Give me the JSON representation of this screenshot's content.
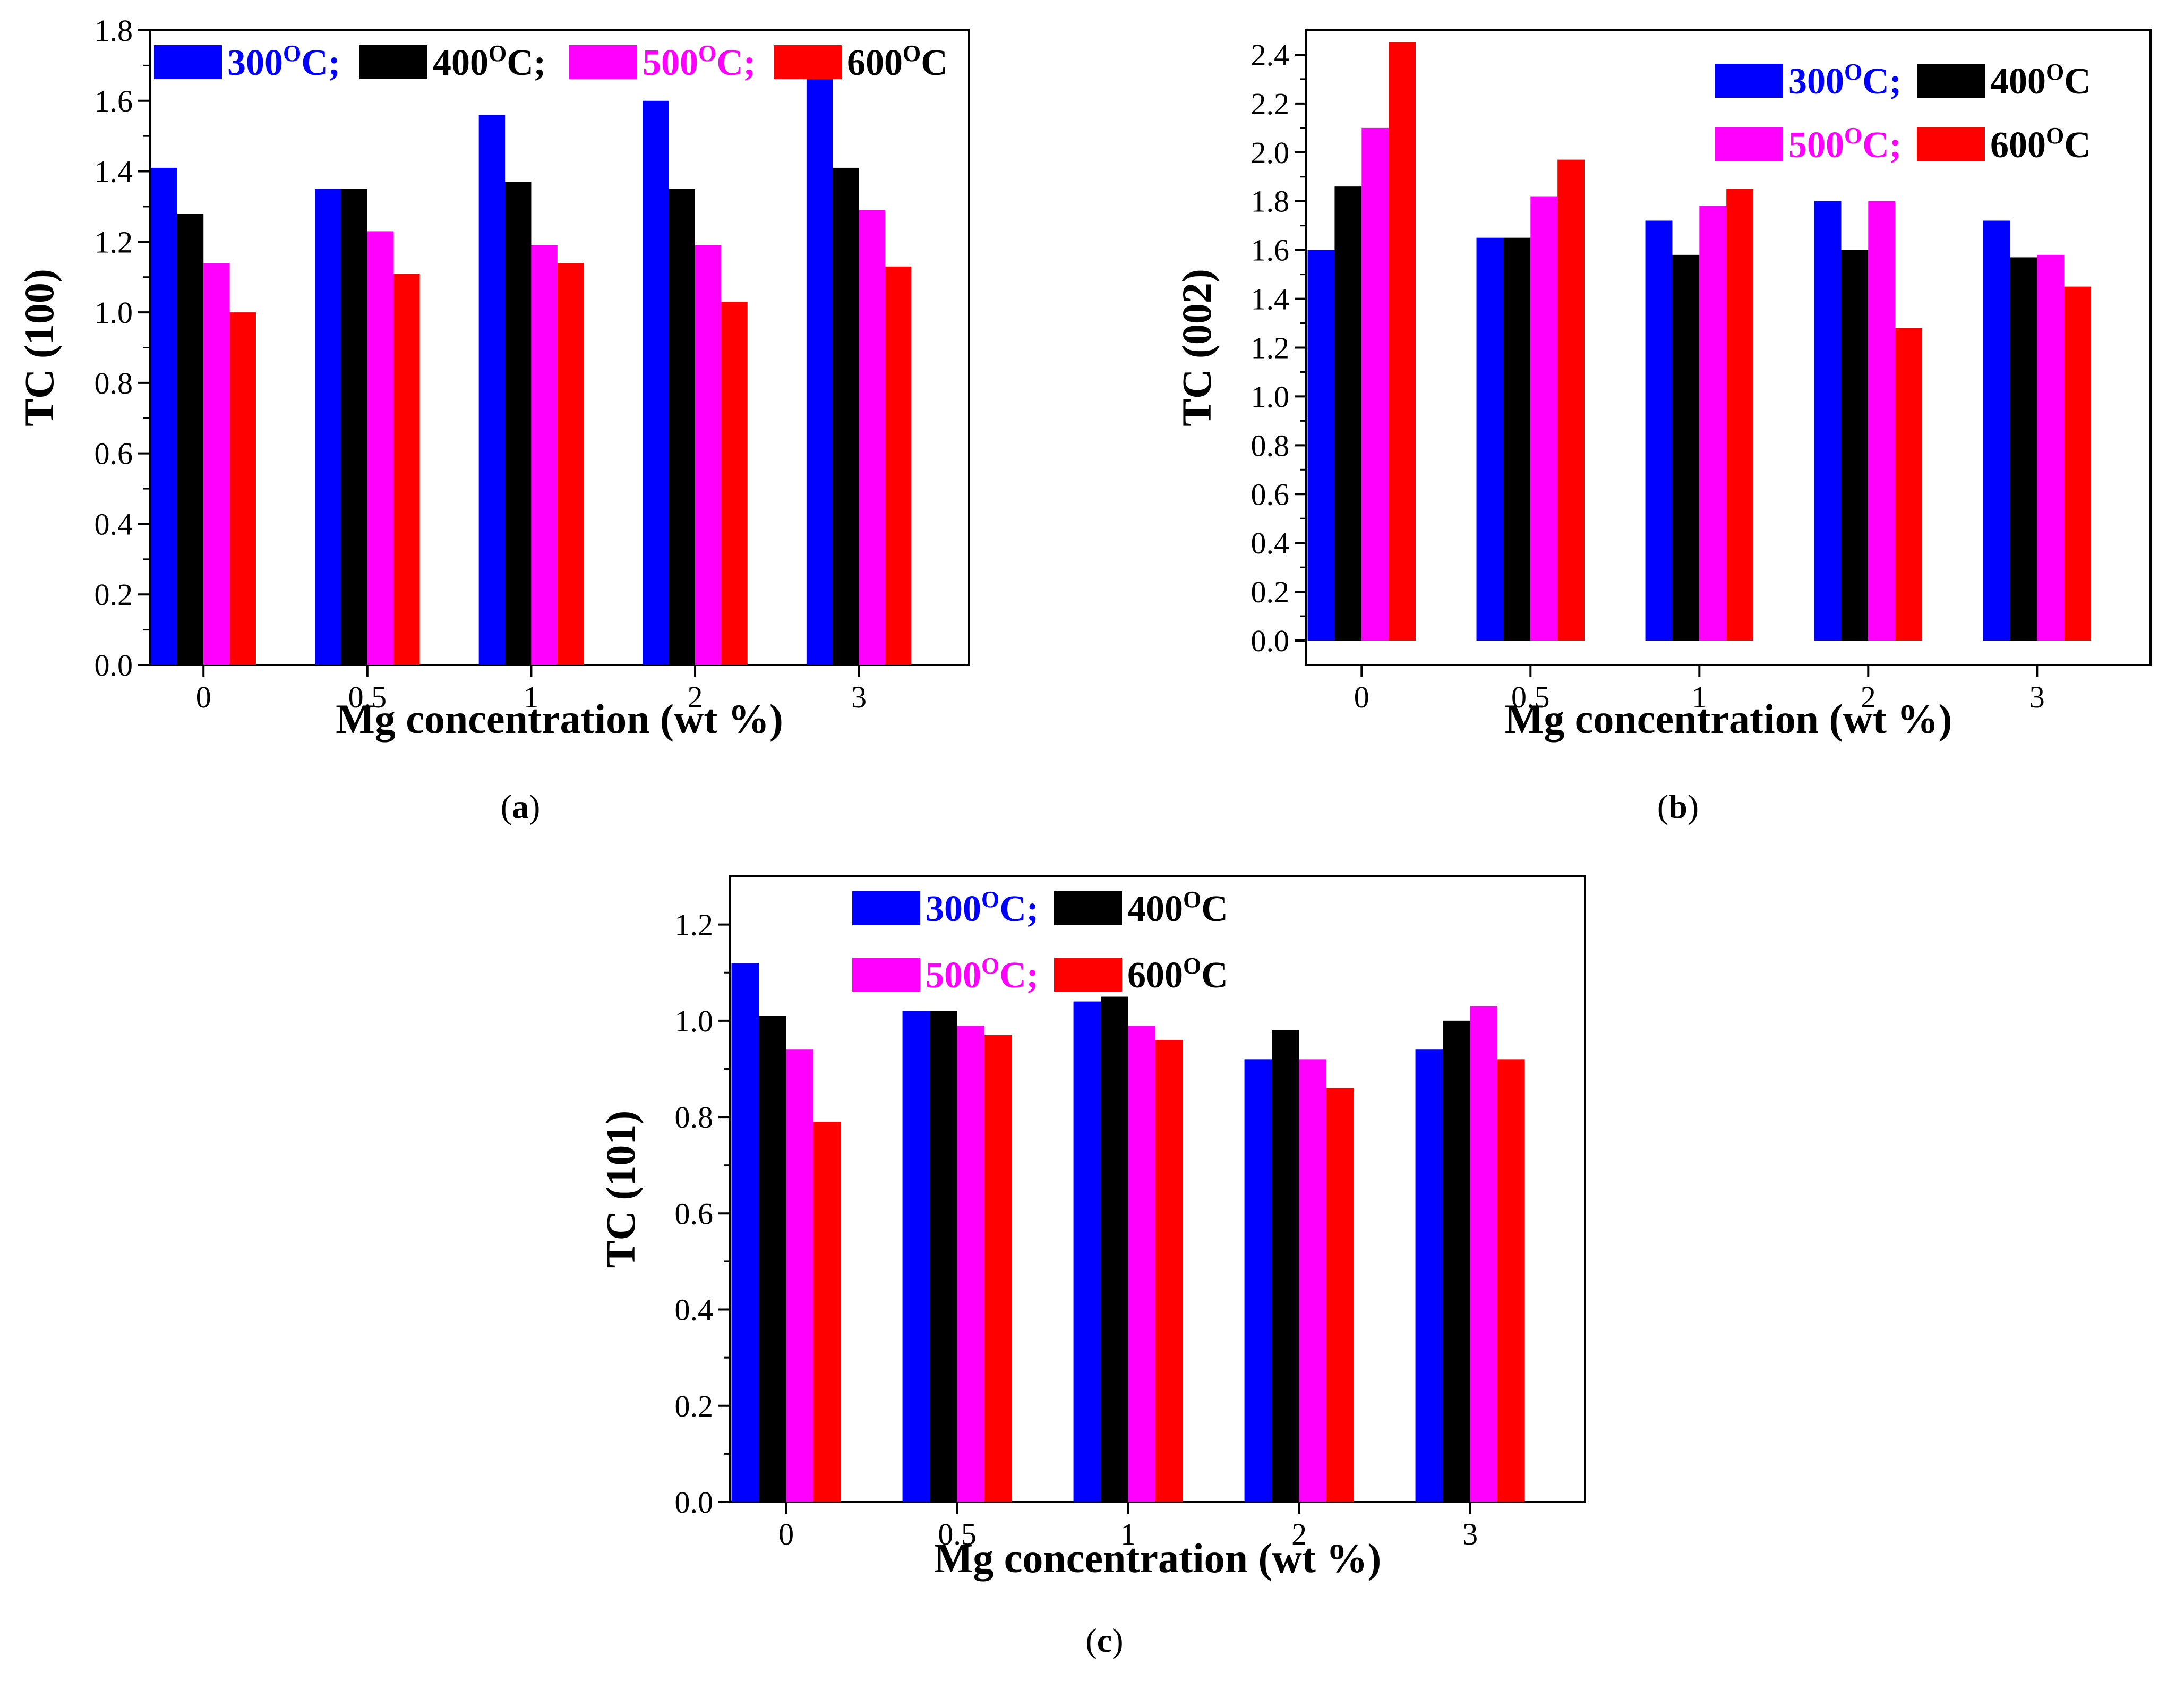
{
  "colors": {
    "300": "#0000ff",
    "400": "#000000",
    "500": "#ff00ff",
    "600": "#ff0000"
  },
  "chart_data": [
    {
      "id": "a",
      "type": "bar",
      "caption_prefix": "(",
      "caption_letter": "a",
      "caption_suffix": ")",
      "xlabel": "Mg concentration (wt %)",
      "ylabel": "TC (100)",
      "categories": [
        "0",
        "0.5",
        "1",
        "2",
        "3"
      ],
      "ylim": [
        0,
        1.8
      ],
      "yticks": [
        "0.0",
        "0.2",
        "0.4",
        "0.6",
        "0.8",
        "1.0",
        "1.2",
        "1.4",
        "1.6",
        "1.8"
      ],
      "legend_placement": "top, single row",
      "series": [
        {
          "key": "300",
          "label_num": "300",
          "label_sup": "O",
          "label_rest": "C;",
          "values": [
            1.41,
            1.35,
            1.56,
            1.6,
            1.68
          ]
        },
        {
          "key": "400",
          "label_num": "400",
          "label_sup": "O",
          "label_rest": "C;",
          "values": [
            1.28,
            1.35,
            1.37,
            1.35,
            1.41
          ]
        },
        {
          "key": "500",
          "label_num": "500",
          "label_sup": "O",
          "label_rest": "C;",
          "values": [
            1.14,
            1.23,
            1.19,
            1.19,
            1.29
          ]
        },
        {
          "key": "600",
          "label_num": "600",
          "label_sup": "O",
          "label_rest": "C",
          "values": [
            1.0,
            1.11,
            1.14,
            1.03,
            1.13
          ]
        }
      ]
    },
    {
      "id": "b",
      "type": "bar",
      "caption_prefix": "(",
      "caption_letter": "b",
      "caption_suffix": ")",
      "xlabel": "Mg concentration (wt %)",
      "ylabel": "TC (002)",
      "categories": [
        "0",
        "0.5",
        "1",
        "2",
        "3"
      ],
      "ylim": [
        -0.1,
        2.5
      ],
      "yticks": [
        "0.0",
        "0.2",
        "0.4",
        "0.6",
        "0.8",
        "1.0",
        "1.2",
        "1.4",
        "1.6",
        "1.8",
        "2.0",
        "2.2",
        "2.4"
      ],
      "legend_placement": "top-right, two rows",
      "series": [
        {
          "key": "300",
          "label_num": "300",
          "label_sup": "O",
          "label_rest": "C;",
          "values": [
            1.6,
            1.65,
            1.72,
            1.8,
            1.72
          ]
        },
        {
          "key": "400",
          "label_num": "400",
          "label_sup": "O",
          "label_rest": "C",
          "values": [
            1.86,
            1.65,
            1.58,
            1.6,
            1.57
          ]
        },
        {
          "key": "500",
          "label_num": "500",
          "label_sup": "O",
          "label_rest": "C;",
          "values": [
            2.1,
            1.82,
            1.78,
            1.8,
            1.58
          ]
        },
        {
          "key": "600",
          "label_num": "600",
          "label_sup": "O",
          "label_rest": "C",
          "values": [
            2.45,
            1.97,
            1.85,
            1.28,
            1.45
          ]
        }
      ]
    },
    {
      "id": "c",
      "type": "bar",
      "caption_prefix": "(",
      "caption_letter": "c",
      "caption_suffix": ")",
      "xlabel": "Mg concentration (wt %)",
      "ylabel": "TC (101)",
      "categories": [
        "0",
        "0.5",
        "1",
        "2",
        "3"
      ],
      "ylim": [
        0,
        1.3
      ],
      "yticks": [
        "0.0",
        "0.2",
        "0.4",
        "0.6",
        "0.8",
        "1.0",
        "1.2"
      ],
      "legend_placement": "top, two rows",
      "series": [
        {
          "key": "300",
          "label_num": "300",
          "label_sup": "O",
          "label_rest": "C;",
          "values": [
            1.12,
            1.02,
            1.04,
            0.92,
            0.94
          ]
        },
        {
          "key": "400",
          "label_num": "400",
          "label_sup": "O",
          "label_rest": "C",
          "values": [
            1.01,
            1.02,
            1.05,
            0.98,
            1.0
          ]
        },
        {
          "key": "500",
          "label_num": "500",
          "label_sup": "O",
          "label_rest": "C;",
          "values": [
            0.94,
            0.99,
            0.99,
            0.92,
            1.03
          ]
        },
        {
          "key": "600",
          "label_num": "600",
          "label_sup": "O",
          "label_rest": "C",
          "values": [
            0.79,
            0.97,
            0.96,
            0.86,
            0.92
          ]
        }
      ]
    }
  ]
}
